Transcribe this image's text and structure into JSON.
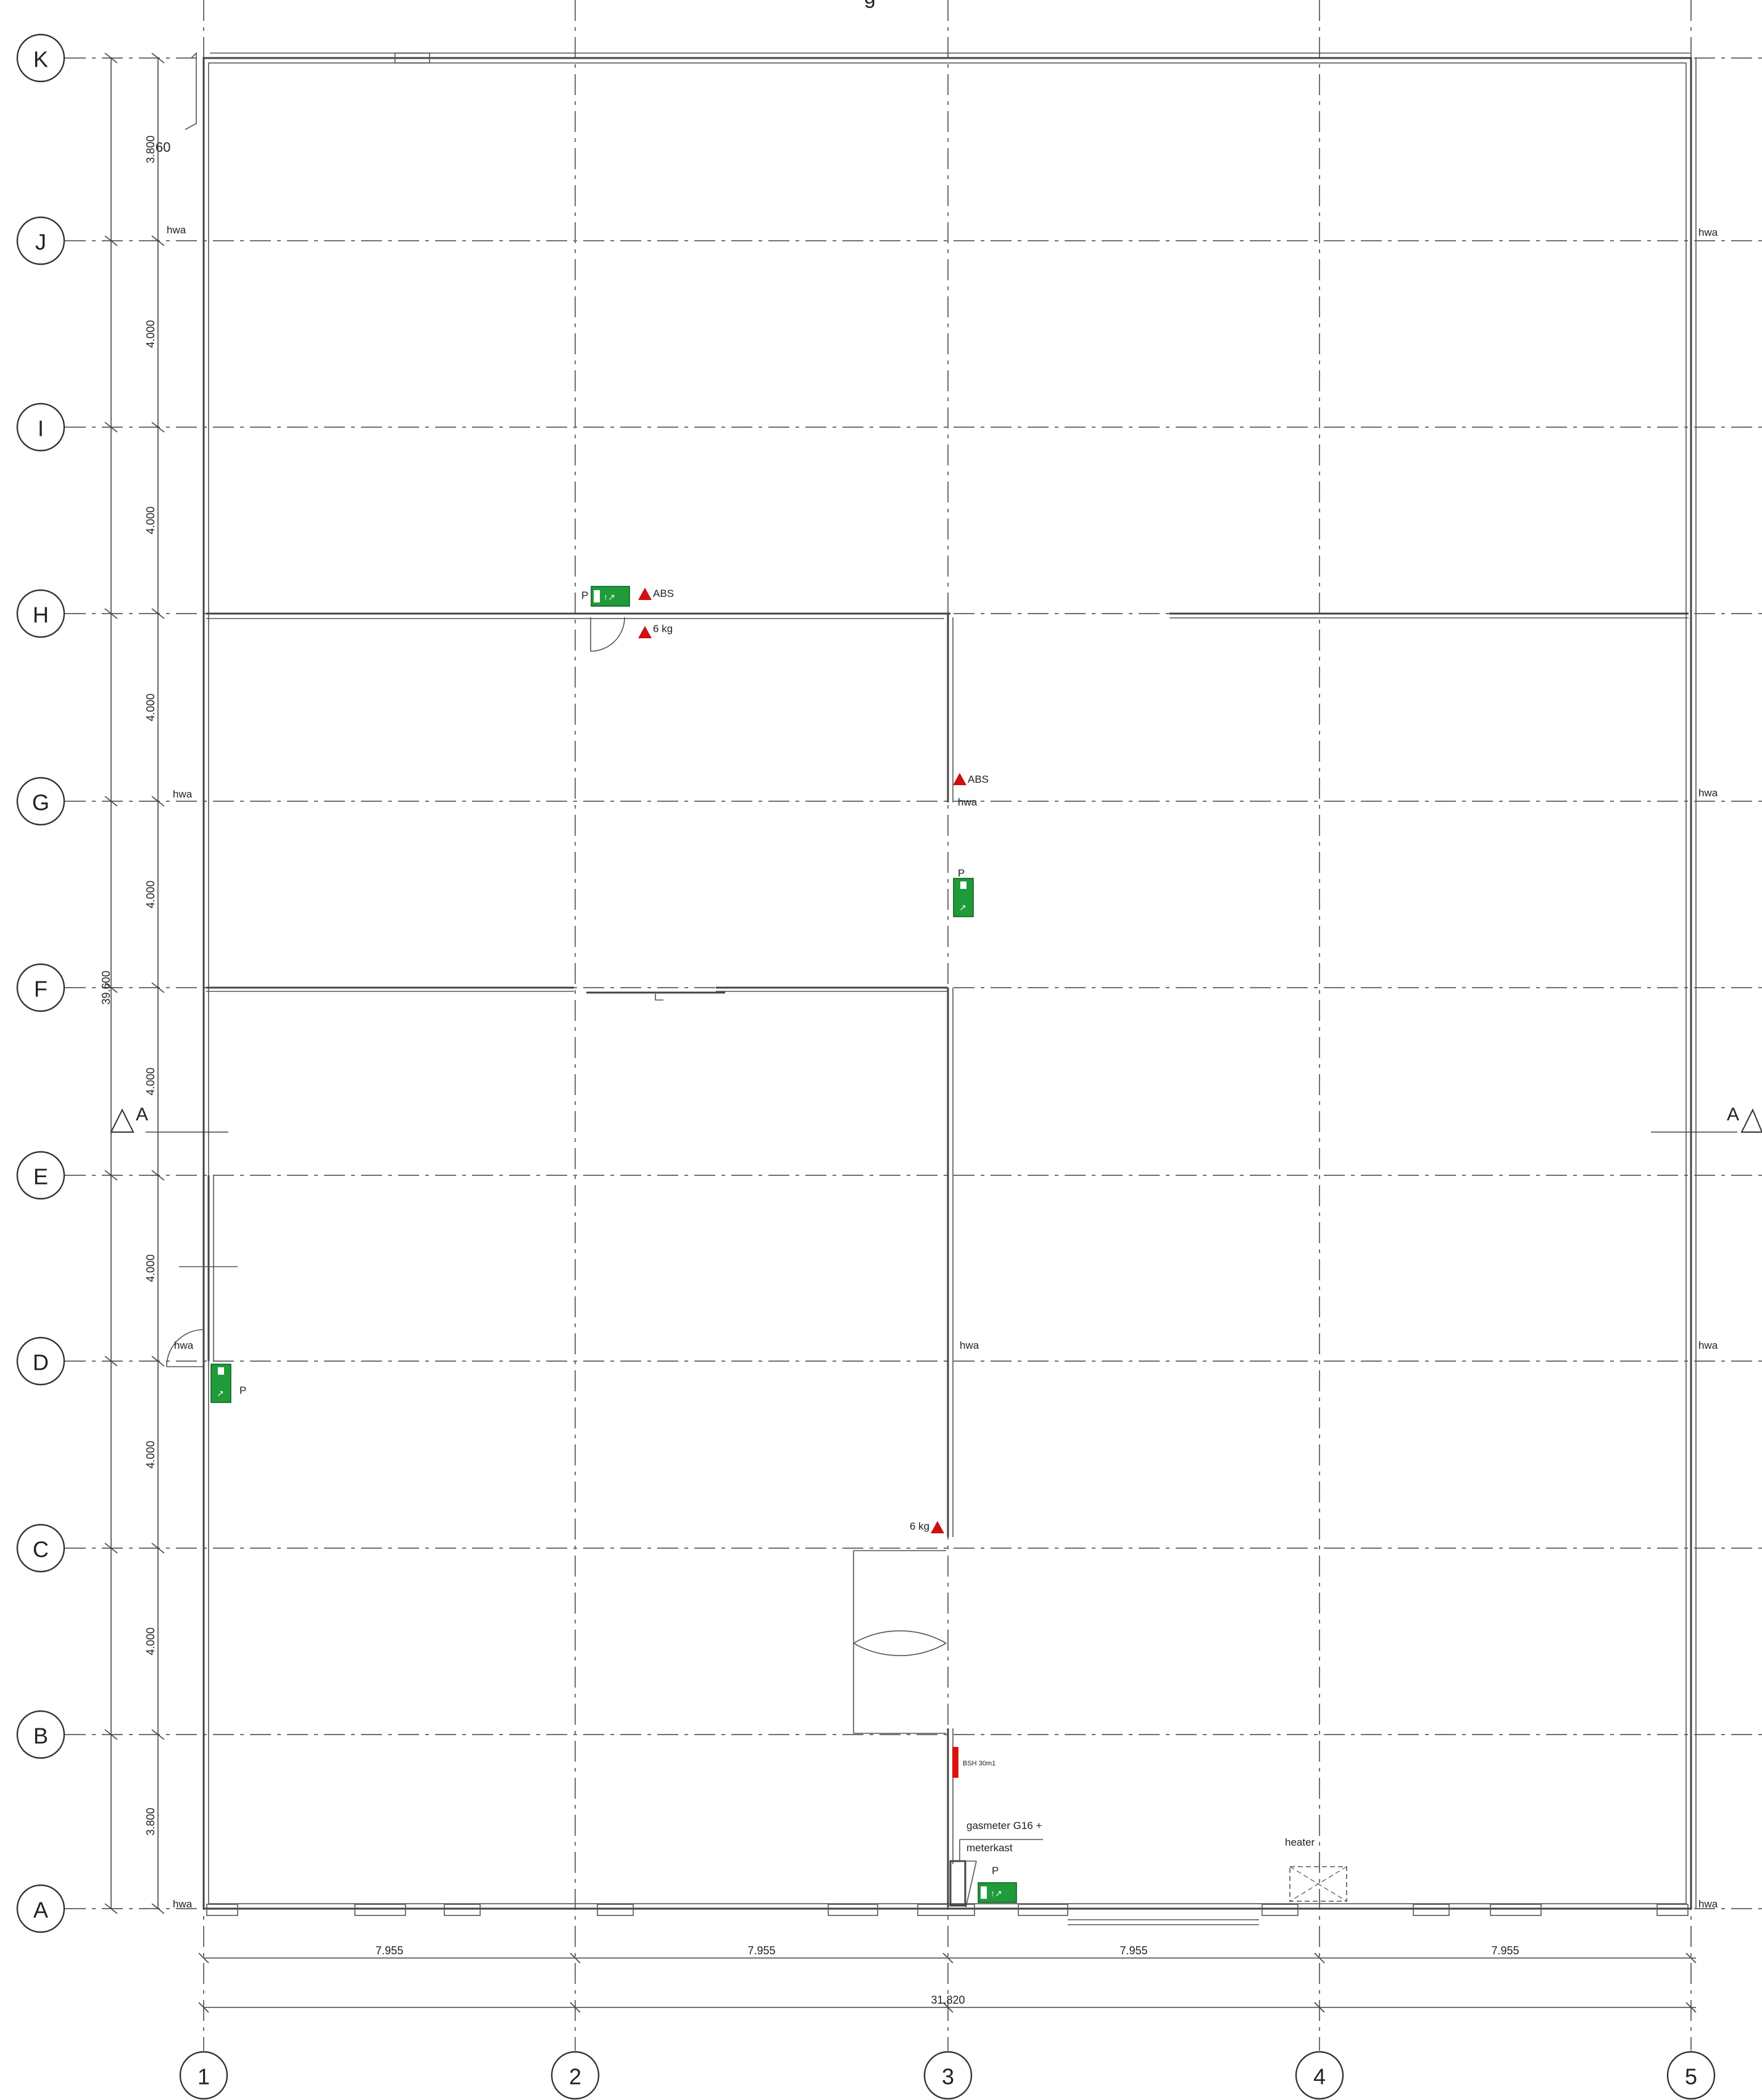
{
  "title_fragment": "g",
  "grid_rows": [
    {
      "id": "K",
      "label": "K"
    },
    {
      "id": "J",
      "label": "J"
    },
    {
      "id": "I",
      "label": "I"
    },
    {
      "id": "H",
      "label": "H"
    },
    {
      "id": "G",
      "label": "G"
    },
    {
      "id": "F",
      "label": "F"
    },
    {
      "id": "E",
      "label": "E"
    },
    {
      "id": "D",
      "label": "D"
    },
    {
      "id": "C",
      "label": "C"
    },
    {
      "id": "B",
      "label": "B"
    },
    {
      "id": "A",
      "label": "A"
    }
  ],
  "grid_columns": [
    {
      "id": "1",
      "label": "1"
    },
    {
      "id": "2",
      "label": "2"
    },
    {
      "id": "3",
      "label": "3"
    },
    {
      "id": "4",
      "label": "4"
    },
    {
      "id": "5",
      "label": "5"
    }
  ],
  "vertical_dimensions": [
    "3.800",
    "4.000",
    "4.000",
    "4.000",
    "4.000",
    "4.000",
    "4.000",
    "4.000",
    "4.000",
    "3.800"
  ],
  "overall_vertical_dimension": "39.600",
  "horizontal_dimensions": [
    "7.955",
    "7.955",
    "7.955",
    "7.955"
  ],
  "overall_horizontal_dimension": "31.820",
  "section_marker": "A",
  "labels": {
    "hwa": "hwa",
    "abs": "ABS",
    "extinguisher": "6 kg",
    "pressure": "P",
    "gasmeter_line1": "gasmeter G16 +",
    "gasmeter_line2": "meterkast",
    "heater": "heater",
    "fire_rating": "60",
    "hose_reel": "BSH 30m1"
  },
  "colors": {
    "exit_sign": "#1f9b3a",
    "warning_triangle": "#cc1111",
    "hose_reel": "#dd1111"
  }
}
